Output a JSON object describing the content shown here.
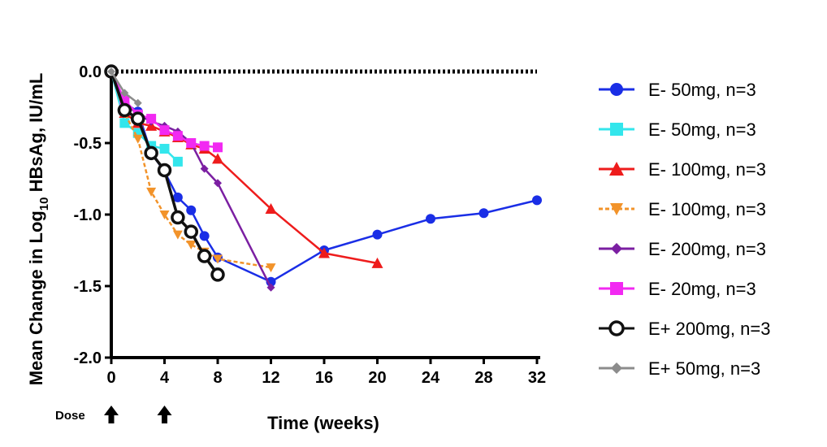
{
  "chart_data": {
    "type": "line",
    "xlabel": "Time (weeks)",
    "ylabel_prefix": "Mean Change in Log",
    "ylabel_sub": "10",
    "ylabel_suffix": " HBsAg, IU/mL",
    "xlim": [
      0,
      32
    ],
    "ylim": [
      -2.0,
      0.0
    ],
    "x_ticks": [
      0,
      4,
      8,
      12,
      16,
      20,
      24,
      28,
      32
    ],
    "x_tick_labels": [
      "0",
      "4",
      "8",
      "12",
      "16",
      "20",
      "24",
      "28",
      "32"
    ],
    "y_ticks": [
      0.0,
      -0.5,
      -1.0,
      -1.5,
      -2.0
    ],
    "y_tick_labels": [
      "0.0",
      "-0.5",
      "-1.0",
      "-1.5",
      "-2.0"
    ],
    "grid": false,
    "legend_position": "right",
    "reference_line": {
      "y": 0.0,
      "style": "dotted",
      "color": "#000000"
    },
    "annotations": {
      "dose_label": "Dose",
      "dose_weeks": [
        0,
        4
      ]
    },
    "series": [
      {
        "name": "E- 50mg, n=3",
        "color": "#1a2ee6",
        "marker": "circle",
        "dash": false,
        "x": [
          0,
          1,
          2,
          3,
          4,
          5,
          6,
          7,
          8,
          12,
          16,
          20,
          24,
          28,
          32
        ],
        "y": [
          0.0,
          -0.22,
          -0.28,
          -0.57,
          -0.7,
          -0.88,
          -0.97,
          -1.15,
          -1.3,
          -1.47,
          -1.25,
          -1.14,
          -1.03,
          -0.99,
          -0.9
        ]
      },
      {
        "name": "E- 50mg, n=3",
        "color": "#33e6ec",
        "marker": "square",
        "dash": false,
        "x": [
          0,
          1,
          2,
          3,
          4,
          5
        ],
        "y": [
          0.0,
          -0.36,
          -0.43,
          -0.52,
          -0.54,
          -0.63
        ]
      },
      {
        "name": "E- 100mg, n=3",
        "color": "#ee1c1c",
        "marker": "triangle-up",
        "dash": false,
        "x": [
          0,
          1,
          2,
          3,
          4,
          5,
          6,
          7,
          8,
          12,
          16,
          20
        ],
        "y": [
          0.0,
          -0.29,
          -0.36,
          -0.38,
          -0.42,
          -0.46,
          -0.51,
          -0.54,
          -0.61,
          -0.96,
          -1.27,
          -1.34
        ]
      },
      {
        "name": "E- 100mg, n=3",
        "color": "#f2932a",
        "marker": "triangle-down",
        "dash": true,
        "x": [
          0,
          1,
          2,
          3,
          4,
          5,
          6,
          7,
          8,
          12
        ],
        "y": [
          0.0,
          -0.29,
          -0.47,
          -0.84,
          -1.0,
          -1.14,
          -1.21,
          -1.26,
          -1.31,
          -1.37
        ]
      },
      {
        "name": "E- 200mg, n=3",
        "color": "#7b1fa2",
        "marker": "diamond",
        "dash": false,
        "x": [
          0,
          1,
          2,
          3,
          4,
          5,
          6,
          7,
          8,
          12
        ],
        "y": [
          0.0,
          -0.22,
          -0.3,
          -0.35,
          -0.38,
          -0.42,
          -0.5,
          -0.68,
          -0.78,
          -1.51
        ]
      },
      {
        "name": "E- 20mg, n=3",
        "color": "#f229f2",
        "marker": "square",
        "dash": false,
        "x": [
          0,
          1,
          2,
          3,
          4,
          5,
          6,
          7,
          8
        ],
        "y": [
          0.0,
          -0.2,
          -0.3,
          -0.33,
          -0.41,
          -0.45,
          -0.5,
          -0.52,
          -0.53
        ]
      },
      {
        "name": "E+ 200mg, n=3",
        "color": "#111111",
        "marker": "open-circle",
        "dash": false,
        "x": [
          0,
          1,
          2,
          3,
          4,
          5,
          6,
          7,
          8
        ],
        "y": [
          0.0,
          -0.27,
          -0.33,
          -0.57,
          -0.69,
          -1.02,
          -1.12,
          -1.29,
          -1.42
        ]
      },
      {
        "name": "E+ 50mg, n=3",
        "color": "#8c8c8c",
        "marker": "diamond",
        "dash": false,
        "x": [
          0,
          1,
          2
        ],
        "y": [
          0.0,
          -0.15,
          -0.22
        ]
      }
    ]
  }
}
